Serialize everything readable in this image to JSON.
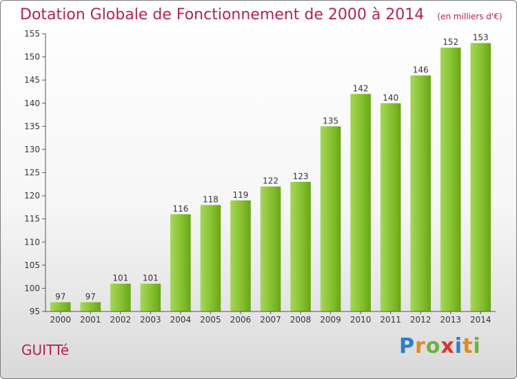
{
  "header": {
    "title": "Dotation Globale de Fonctionnement de 2000 à 2014",
    "unit": "(en milliers d'€)"
  },
  "footer": {
    "commune": "GUITTé",
    "logo_letters": [
      {
        "char": "P",
        "color": "#2b7fc7"
      },
      {
        "char": "r",
        "color": "#e38a1c"
      },
      {
        "char": "o",
        "color": "#6db33f"
      },
      {
        "char": "x",
        "color": "#d9342b"
      },
      {
        "char": "i",
        "color": "#2b7fc7"
      },
      {
        "char": "t",
        "color": "#e38a1c"
      },
      {
        "char": "i",
        "color": "#6db33f"
      }
    ]
  },
  "colors": {
    "title": "#b5224f",
    "bar_light": "#a7d65a",
    "bar_dark": "#6aa518",
    "axis": "#555555",
    "grid": "#d6d6d6"
  },
  "chart_data": {
    "type": "bar",
    "title": "Dotation Globale de Fonctionnement de 2000 à 2014",
    "subtitle": "(en milliers d'€)",
    "xlabel": "",
    "ylabel": "",
    "categories": [
      "2000",
      "2001",
      "2002",
      "2003",
      "2004",
      "2005",
      "2006",
      "2007",
      "2008",
      "2009",
      "2010",
      "2011",
      "2012",
      "2013",
      "2014"
    ],
    "values": [
      97,
      97,
      101,
      101,
      116,
      118,
      119,
      122,
      123,
      135,
      142,
      140,
      146,
      152,
      153
    ],
    "ylim": [
      95,
      155
    ],
    "yticks": [
      95,
      100,
      105,
      110,
      115,
      120,
      125,
      130,
      135,
      140,
      145,
      150,
      155
    ],
    "grid": false,
    "data_labels": true
  }
}
